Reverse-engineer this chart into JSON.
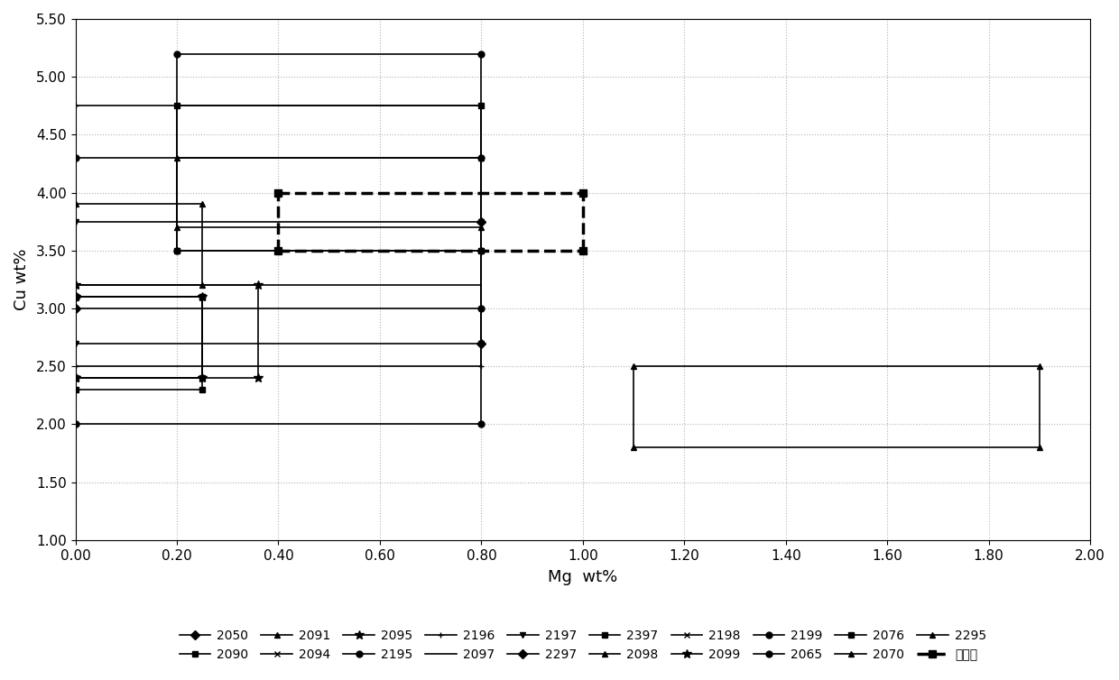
{
  "xlabel": "Mg  wt%",
  "ylabel": "Cu wt%",
  "xlim": [
    0.0,
    2.0
  ],
  "ylim": [
    1.0,
    5.5
  ],
  "xticks": [
    0.0,
    0.2,
    0.4,
    0.6,
    0.8,
    1.0,
    1.2,
    1.4,
    1.6,
    1.8,
    2.0
  ],
  "yticks": [
    1.0,
    1.5,
    2.0,
    2.5,
    3.0,
    3.5,
    4.0,
    4.5,
    5.0,
    5.5
  ],
  "boxes": [
    {
      "name": "2050",
      "mg0": 0.0,
      "mg1": 0.0,
      "cu0": 3.0,
      "cu1": 3.1,
      "marker": "D",
      "ls": "-",
      "lw": 1.2,
      "ms": 5
    },
    {
      "name": "2090",
      "mg0": 0.0,
      "mg1": 0.25,
      "cu0": 2.4,
      "cu1": 3.1,
      "marker": "s",
      "ls": "-",
      "lw": 1.2,
      "ms": 5
    },
    {
      "name": "2091",
      "mg0": 0.0,
      "mg1": 0.25,
      "cu0": 2.4,
      "cu1": 3.1,
      "marker": "^",
      "ls": "-",
      "lw": 1.2,
      "ms": 5
    },
    {
      "name": "2094",
      "mg0": 0.0,
      "mg1": 0.25,
      "cu0": 2.4,
      "cu1": 3.1,
      "marker": "x",
      "ls": "-",
      "lw": 1.2,
      "ms": 5
    },
    {
      "name": "2095",
      "mg0": 0.0,
      "mg1": 0.25,
      "cu0": 2.4,
      "cu1": 3.1,
      "marker": "*",
      "ls": "-",
      "lw": 1.2,
      "ms": 7
    },
    {
      "name": "2195",
      "mg0": 0.0,
      "mg1": 0.8,
      "cu0": 4.3,
      "cu1": 4.3,
      "marker": "o",
      "ls": "-",
      "lw": 1.2,
      "ms": 5
    },
    {
      "name": "2196",
      "mg0": 0.0,
      "mg1": 0.8,
      "cu0": 2.5,
      "cu1": 4.75,
      "marker": "+",
      "ls": "-",
      "lw": 1.2,
      "ms": 5
    },
    {
      "name": "2097",
      "mg0": 0.0,
      "mg1": 0.8,
      "cu0": 3.2,
      "cu1": 3.2,
      "marker": null,
      "ls": "-",
      "lw": 1.2,
      "ms": 5
    },
    {
      "name": "2197",
      "mg0": 0.0,
      "mg1": 0.8,
      "cu0": 2.7,
      "cu1": 3.75,
      "marker": "v",
      "ls": "-",
      "lw": 1.2,
      "ms": 5
    },
    {
      "name": "2297",
      "mg0": 0.8,
      "mg1": 0.8,
      "cu0": 2.7,
      "cu1": 3.75,
      "marker": "D",
      "ls": "-",
      "lw": 1.2,
      "ms": 5
    },
    {
      "name": "2397",
      "mg0": 0.0,
      "mg1": 0.25,
      "cu0": 2.3,
      "cu1": 3.1,
      "marker": "s",
      "ls": "-",
      "lw": 1.2,
      "ms": 5
    },
    {
      "name": "2098",
      "mg0": 0.0,
      "mg1": 0.25,
      "cu0": 3.2,
      "cu1": 3.9,
      "marker": "^",
      "ls": "-",
      "lw": 1.2,
      "ms": 5
    },
    {
      "name": "2198",
      "mg0": 0.0,
      "mg1": 0.25,
      "cu0": 2.4,
      "cu1": 3.1,
      "marker": "x",
      "ls": "-",
      "lw": 1.2,
      "ms": 5
    },
    {
      "name": "2099",
      "mg0": 0.0,
      "mg1": 0.36,
      "cu0": 2.4,
      "cu1": 3.2,
      "marker": "*",
      "ls": "-",
      "lw": 1.2,
      "ms": 7
    },
    {
      "name": "2199",
      "mg0": 0.0,
      "mg1": 0.8,
      "cu0": 2.0,
      "cu1": 3.0,
      "marker": "o",
      "ls": "-",
      "lw": 1.2,
      "ms": 5
    },
    {
      "name": "2065",
      "mg0": 0.2,
      "mg1": 0.8,
      "cu0": 3.5,
      "cu1": 5.2,
      "marker": "o",
      "ls": "-",
      "lw": 1.2,
      "ms": 5
    },
    {
      "name": "2076",
      "mg0": 0.2,
      "mg1": 0.8,
      "cu0": 3.5,
      "cu1": 4.75,
      "marker": "s",
      "ls": "-",
      "lw": 1.2,
      "ms": 5
    },
    {
      "name": "2070",
      "mg0": 0.2,
      "mg1": 0.8,
      "cu0": 3.7,
      "cu1": 4.3,
      "marker": "^",
      "ls": "-",
      "lw": 1.2,
      "ms": 5
    },
    {
      "name": "2295",
      "mg0": 1.1,
      "mg1": 1.9,
      "cu0": 1.8,
      "cu1": 2.5,
      "marker": "^",
      "ls": "-",
      "lw": 1.2,
      "ms": 5
    },
    {
      "name": "本发明",
      "mg0": 0.4,
      "mg1": 1.0,
      "cu0": 3.5,
      "cu1": 4.0,
      "marker": "s",
      "ls": "--",
      "lw": 2.5,
      "ms": 6
    }
  ]
}
